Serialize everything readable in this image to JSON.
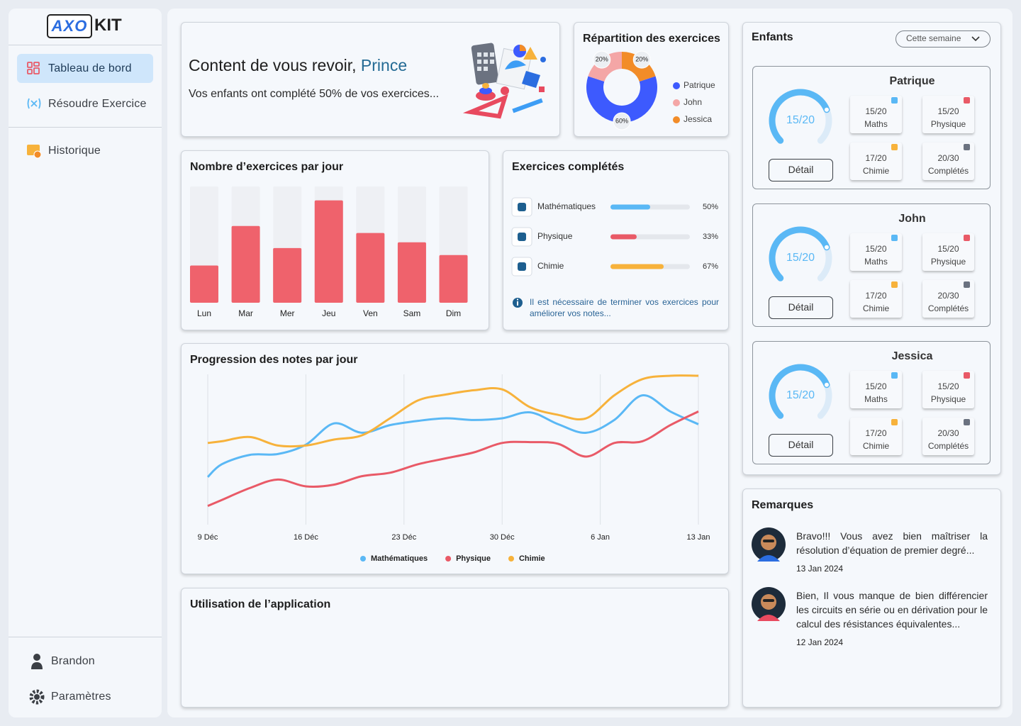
{
  "sidebar": {
    "logo": {
      "mark": "AXO",
      "text": "KIT"
    },
    "nav": [
      "Tableau de bord",
      "Résoudre Exercice",
      "Historique"
    ],
    "footer": [
      "Brandon",
      "Paramètres"
    ]
  },
  "welcome": {
    "greeting": "Content de vous revoir,",
    "name": "Prince",
    "message": "Vos enfants ont complété 50% de vos exercices..."
  },
  "chart_data": [
    {
      "type": "pie",
      "title": "Répartition des exercices",
      "categories": [
        "Patrique",
        "John",
        "Jessica"
      ],
      "values": [
        60,
        20,
        20
      ],
      "value_labels": [
        "60%",
        "20%",
        "20%"
      ],
      "colors": [
        "#3d5afe",
        "#f4a6a6",
        "#f28c28"
      ]
    },
    {
      "type": "bar",
      "title": "Nombre d’exercices par jour",
      "categories": [
        "Lun",
        "Mar",
        "Mer",
        "Jeu",
        "Ven",
        "Sam",
        "Dim"
      ],
      "values": [
        32,
        66,
        47,
        88,
        60,
        52,
        41
      ],
      "color": "#ef626c",
      "ylim": [
        0,
        100
      ]
    },
    {
      "type": "progress",
      "title": "Exercices complétés",
      "categories": [
        "Mathématiques",
        "Physique",
        "Chimie"
      ],
      "values": [
        50,
        33,
        67
      ],
      "value_labels": [
        "50%",
        "33%",
        "67%"
      ],
      "colors": [
        "#5ab8f5",
        "#e95a67",
        "#f7b23b"
      ],
      "xlim": [
        0,
        100
      ],
      "note": "Il est nécessaire de terminer vos exercices pour améliorer vos notes..."
    },
    {
      "type": "line",
      "title": "Progression des notes par jour",
      "x": [
        0,
        1,
        3,
        5,
        7,
        9,
        11,
        13,
        15,
        17,
        19,
        21,
        23,
        25,
        27,
        29,
        31,
        33,
        35
      ],
      "xlim": [
        0,
        35
      ],
      "xticks": [
        {
          "value": 0,
          "label": "9 Déc"
        },
        {
          "value": 7,
          "label": "16 Déc"
        },
        {
          "value": 14,
          "label": "23 Déc"
        },
        {
          "value": 21,
          "label": "30 Déc"
        },
        {
          "value": 28,
          "label": "6 Jan"
        },
        {
          "value": 35,
          "label": "13 Jan"
        }
      ],
      "ylim": [
        0,
        20
      ],
      "grid": true,
      "series": [
        {
          "name": "Mathématiques",
          "color": "#5ab8f5",
          "values": [
            5.6,
            7.1,
            8.2,
            8.3,
            9.4,
            11.9,
            10.8,
            11.7,
            12.2,
            12.5,
            12.3,
            12.5,
            13.2,
            11.8,
            10.8,
            12.3,
            15.2,
            13.3,
            11.8
          ]
        },
        {
          "name": "Physique",
          "color": "#e95a67",
          "values": [
            2.2,
            2.9,
            4.3,
            5.3,
            4.5,
            4.7,
            5.7,
            6.1,
            7.1,
            7.8,
            8.5,
            9.6,
            9.7,
            9.5,
            8.0,
            9.6,
            9.8,
            11.7,
            13.3
          ]
        },
        {
          "name": "Chimie",
          "color": "#f7b23b",
          "values": [
            9.6,
            9.8,
            10.3,
            9.3,
            9.3,
            10.0,
            10.5,
            12.5,
            14.6,
            15.3,
            15.8,
            15.9,
            13.8,
            12.9,
            12.5,
            15.2,
            17.1,
            17.5,
            17.5
          ]
        }
      ]
    }
  ],
  "usage": {
    "title": "Utilisation de l’application"
  },
  "children": {
    "title": "Enfants",
    "period": "Cette semaine",
    "detail": "Détail",
    "items": [
      {
        "name": "Patrique",
        "gauge": {
          "value": 15,
          "max": 20,
          "label": "15/20"
        },
        "stats": [
          {
            "score": "15/20",
            "label": "Maths"
          },
          {
            "score": "15/20",
            "label": "Physique"
          },
          {
            "score": "17/20",
            "label": "Chimie"
          },
          {
            "score": "20/30",
            "label": "Complétés"
          }
        ]
      },
      {
        "name": "John",
        "gauge": {
          "value": 15,
          "max": 20,
          "label": "15/20"
        },
        "stats": [
          {
            "score": "15/20",
            "label": "Maths"
          },
          {
            "score": "15/20",
            "label": "Physique"
          },
          {
            "score": "17/20",
            "label": "Chimie"
          },
          {
            "score": "20/30",
            "label": "Complétés"
          }
        ]
      },
      {
        "name": "Jessica",
        "gauge": {
          "value": 15,
          "max": 20,
          "label": "15/20"
        },
        "stats": [
          {
            "score": "15/20",
            "label": "Maths"
          },
          {
            "score": "15/20",
            "label": "Physique"
          },
          {
            "score": "17/20",
            "label": "Chimie"
          },
          {
            "score": "20/30",
            "label": "Complétés"
          }
        ]
      }
    ]
  },
  "remarks": {
    "title": "Remarques",
    "items": [
      {
        "text": "Bravo!!! Vous avez bien maîtriser la résolution d’équation de premier degré...",
        "date": "13 Jan 2024"
      },
      {
        "text": "Bien, Il vous manque de bien différencier les circuits en série ou en dérivation pour le calcul des résistances équivalentes...",
        "date": "12 Jan 2024"
      }
    ]
  }
}
